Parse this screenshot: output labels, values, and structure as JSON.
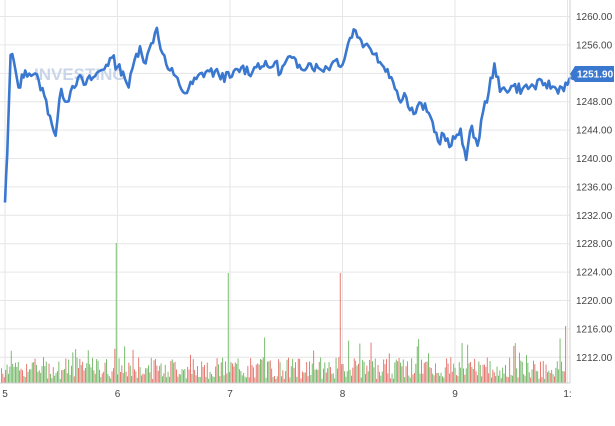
{
  "chart_data": {
    "type": "line",
    "title": "",
    "xlabel": "",
    "ylabel": "",
    "x_ticks": [
      "5",
      "6",
      "7",
      "8",
      "9",
      "1:"
    ],
    "y_ticks": [
      "1260.00",
      "1256.00",
      "1252.00",
      "1248.00",
      "1244.00",
      "1240.00",
      "1236.00",
      "1232.00",
      "1228.00",
      "1224.00",
      "1220.00",
      "1216.00",
      "1212.00"
    ],
    "ylim": [
      1208.8,
      1261.2
    ],
    "xlim": [
      5.0,
      10.15
    ],
    "grid": true,
    "last_value": "1251.90",
    "watermark": "INVESTING",
    "series": [
      {
        "type": "line",
        "color": "#3a78d0",
        "x": [
          5.0,
          5.02,
          5.05,
          5.08,
          5.12,
          5.18,
          5.25,
          5.3,
          5.35,
          5.4,
          5.45,
          5.5,
          5.55,
          5.6,
          5.65,
          5.7,
          5.8,
          5.9,
          5.95,
          6.0,
          6.05,
          6.1,
          6.15,
          6.2,
          6.25,
          6.3,
          6.35,
          6.4,
          6.45,
          6.5,
          6.55,
          6.6,
          6.7,
          6.8,
          6.9,
          7.0,
          7.1,
          7.2,
          7.25,
          7.3,
          7.35,
          7.4,
          7.45,
          7.5,
          7.55,
          7.6,
          7.7,
          7.8,
          7.9,
          7.95,
          8.0,
          8.05,
          8.1,
          8.15,
          8.2,
          8.25,
          8.3,
          8.35,
          8.4,
          8.45,
          8.5,
          8.55,
          8.6,
          8.65,
          8.7,
          8.75,
          8.8,
          8.85,
          8.9,
          8.95,
          9.0,
          9.05,
          9.1,
          9.15,
          9.2,
          9.25,
          9.3,
          9.35,
          9.4,
          9.5,
          9.6,
          9.7,
          9.8,
          9.9,
          10.0,
          10.05,
          10.1
        ],
        "y": [
          1233.8,
          1240.5,
          1254.6,
          1253.6,
          1250.0,
          1252.4,
          1251.8,
          1251.0,
          1248.8,
          1246.0,
          1243.2,
          1249.8,
          1248.0,
          1250.2,
          1251.4,
          1250.4,
          1251.6,
          1253.2,
          1254.2,
          1252.9,
          1252.2,
          1250.0,
          1253.8,
          1255.8,
          1253.4,
          1256.2,
          1258.4,
          1254.8,
          1252.6,
          1251.8,
          1250.4,
          1249.2,
          1251.2,
          1252.4,
          1251.8,
          1251.4,
          1252.8,
          1252.2,
          1253.4,
          1253.0,
          1252.8,
          1253.6,
          1252.0,
          1253.8,
          1254.2,
          1252.8,
          1253.4,
          1252.6,
          1253.2,
          1254.0,
          1253.2,
          1256.2,
          1258.2,
          1257.0,
          1256.0,
          1255.4,
          1254.8,
          1253.2,
          1252.6,
          1250.8,
          1248.4,
          1249.2,
          1246.8,
          1246.4,
          1247.8,
          1246.6,
          1245.2,
          1242.4,
          1243.4,
          1241.6,
          1242.8,
          1244.2,
          1239.8,
          1244.6,
          1241.8,
          1246.6,
          1249.4,
          1253.4,
          1249.4,
          1250.2,
          1249.8,
          1250.2,
          1250.6,
          1249.8,
          1250.4,
          1251.2,
          1251.9
        ]
      }
    ]
  }
}
